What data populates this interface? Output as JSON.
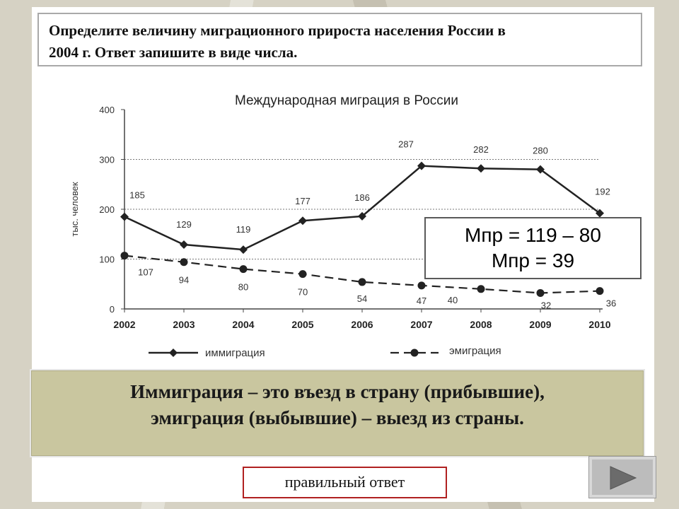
{
  "question": {
    "line1": "Определите величину миграционного прироста населения России в",
    "line2": "2004 г. Ответ запишите в виде числа."
  },
  "chart_data": {
    "type": "line",
    "title": "Международная миграция в России",
    "ylabel": "тыс. человек",
    "xlabel": "",
    "categories": [
      "2002",
      "2003",
      "2004",
      "2005",
      "2006",
      "2007",
      "2008",
      "2009",
      "2010"
    ],
    "ylim": [
      0,
      400
    ],
    "yticks": [
      0,
      100,
      200,
      300,
      400
    ],
    "grid_dotted_at": [
      100,
      200,
      300
    ],
    "series": [
      {
        "name": "иммиграция",
        "style": "solid",
        "values": [
          185,
          129,
          119,
          177,
          186,
          287,
          282,
          280,
          192
        ]
      },
      {
        "name": "эмиграция",
        "style": "dashed",
        "values": [
          107,
          94,
          80,
          70,
          54,
          47,
          40,
          32,
          36
        ]
      }
    ],
    "legend_position": "bottom"
  },
  "formula": {
    "line1": "Мпр = 119 – 80",
    "line2": "Мпр = 39"
  },
  "definition": {
    "line1": "Иммиграция – это въезд в страну (прибывшие),",
    "line2": "эмиграция (выбывшие) – выезд из страны."
  },
  "answer_button": "правильный ответ",
  "next_button_icon": "play-triangle-icon"
}
